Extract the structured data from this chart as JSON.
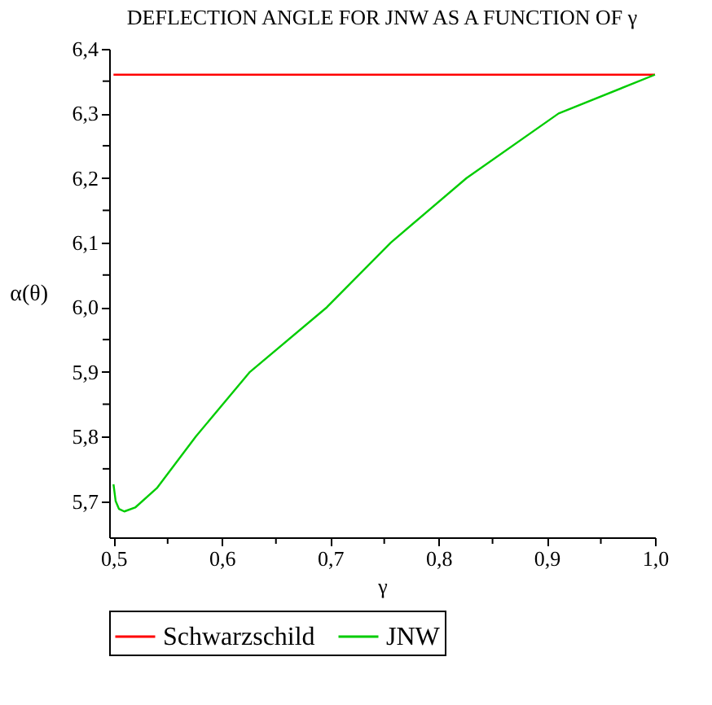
{
  "chart_data": {
    "type": "line",
    "title": "DEFLECTION ANGLE FOR JNW AS A FUNCTION OF γ",
    "xlabel": "γ",
    "ylabel": "α(θ)",
    "series": [
      {
        "name": "Schwarzschild",
        "color": "#ff0000",
        "x": [
          0.5,
          1.0
        ],
        "values": [
          6.36,
          6.36
        ]
      },
      {
        "name": "JNW",
        "color": "#00cc00",
        "x": [
          0.5,
          0.502,
          0.505,
          0.51,
          0.52,
          0.54,
          0.576,
          0.626,
          0.697,
          0.756,
          0.826,
          0.911,
          1.0
        ],
        "values": [
          5.726,
          5.7,
          5.688,
          5.684,
          5.69,
          5.72,
          5.8,
          5.9,
          6.0,
          6.1,
          6.2,
          6.3,
          6.36
        ]
      }
    ],
    "xlim": [
      0.496,
      1.0
    ],
    "ylim": [
      5.644,
      6.4
    ],
    "xticks": [
      {
        "value": 0.5,
        "label": "0,5"
      },
      {
        "value": 0.55,
        "label": null
      },
      {
        "value": 0.6,
        "label": "0,6"
      },
      {
        "value": 0.65,
        "label": null
      },
      {
        "value": 0.7,
        "label": "0,7"
      },
      {
        "value": 0.75,
        "label": null
      },
      {
        "value": 0.8,
        "label": "0,8"
      },
      {
        "value": 0.85,
        "label": null
      },
      {
        "value": 0.9,
        "label": "0,9"
      },
      {
        "value": 0.95,
        "label": null
      },
      {
        "value": 1.0,
        "label": "1,0"
      }
    ],
    "yticks": [
      {
        "value": 5.7,
        "label": "5,7"
      },
      {
        "value": 5.75,
        "label": null
      },
      {
        "value": 5.8,
        "label": "5,8"
      },
      {
        "value": 5.85,
        "label": null
      },
      {
        "value": 5.9,
        "label": "5,9"
      },
      {
        "value": 5.95,
        "label": null
      },
      {
        "value": 6.0,
        "label": "6,0"
      },
      {
        "value": 6.05,
        "label": null
      },
      {
        "value": 6.1,
        "label": "6,1"
      },
      {
        "value": 6.15,
        "label": null
      },
      {
        "value": 6.2,
        "label": "6,2"
      },
      {
        "value": 6.25,
        "label": null
      },
      {
        "value": 6.3,
        "label": "6,3"
      },
      {
        "value": 6.35,
        "label": null
      },
      {
        "value": 6.4,
        "label": "6,4"
      }
    ],
    "grid": false,
    "legend": "bottom",
    "line_style": "solid",
    "marker": "none"
  }
}
